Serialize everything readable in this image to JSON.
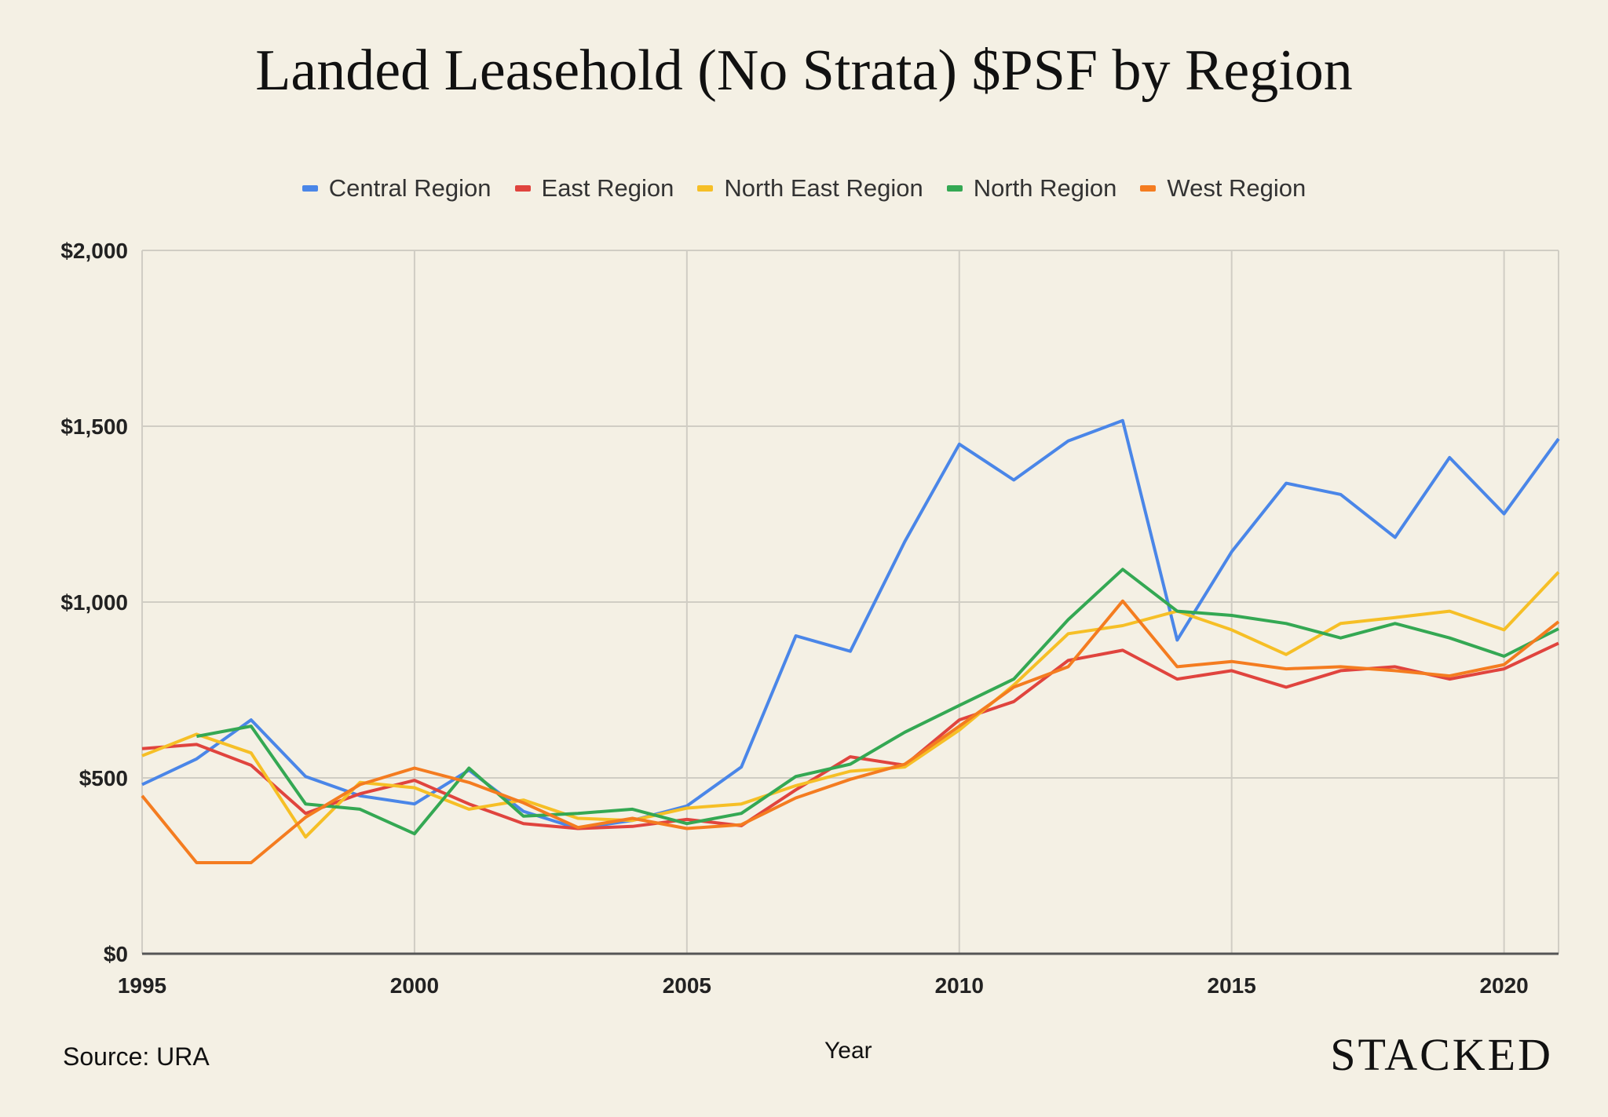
{
  "chart_data": {
    "type": "line",
    "title": "Landed Leasehold (No Strata) $PSF by Region",
    "xlabel": "Year",
    "ylabel": "",
    "ylim": [
      0,
      2000
    ],
    "xlim": [
      1995,
      2021
    ],
    "yticks": [
      "$0",
      "$500",
      "$1,000",
      "$1,500",
      "$2,000"
    ],
    "ytick_values": [
      0,
      500,
      1000,
      1500,
      2000
    ],
    "xticks": [
      "1995",
      "2000",
      "2005",
      "2010",
      "2015",
      "2020"
    ],
    "xtick_values": [
      1995,
      2000,
      2005,
      2010,
      2015,
      2020
    ],
    "grid": true,
    "legend_position": "top-center",
    "x": [
      1995,
      1996,
      1997,
      1998,
      1999,
      2000,
      2001,
      2002,
      2003,
      2004,
      2005,
      2006,
      2007,
      2008,
      2009,
      2010,
      2011,
      2012,
      2013,
      2014,
      2015,
      2016,
      2017,
      2018,
      2019,
      2020,
      2021
    ],
    "series": [
      {
        "name": "Central Region",
        "color": "#4a86e8",
        "values": [
          481,
          554,
          665,
          504,
          449,
          426,
          522,
          405,
          356,
          379,
          420,
          531,
          904,
          860,
          1172,
          1449,
          1347,
          1458,
          1516,
          892,
          1143,
          1338,
          1306,
          1184,
          1411,
          1251,
          1464
        ]
      },
      {
        "name": "East Region",
        "color": "#e0443e",
        "values": [
          583,
          595,
          536,
          399,
          455,
          493,
          426,
          370,
          356,
          362,
          382,
          364,
          466,
          560,
          536,
          665,
          717,
          834,
          863,
          781,
          805,
          758,
          805,
          816,
          781,
          810,
          883
        ]
      },
      {
        "name": "North East Region",
        "color": "#f6bf26",
        "values": [
          563,
          624,
          571,
          332,
          487,
          472,
          411,
          437,
          385,
          379,
          414,
          426,
          478,
          519,
          531,
          636,
          764,
          910,
          933,
          974,
          921,
          851,
          939,
          956,
          974,
          921,
          1085
        ]
      },
      {
        "name": "North Region",
        "color": "#34a853",
        "values": [
          null,
          618,
          647,
          426,
          411,
          341,
          528,
          391,
          399,
          411,
          370,
          399,
          504,
          539,
          630,
          706,
          781,
          950,
          1093,
          974,
          962,
          939,
          898,
          939,
          898,
          846,
          924
        ]
      },
      {
        "name": "West Region",
        "color": "#f47c20",
        "values": [
          449,
          259,
          259,
          388,
          481,
          528,
          487,
          429,
          359,
          385,
          356,
          367,
          443,
          496,
          539,
          647,
          758,
          816,
          1003,
          816,
          831,
          810,
          816,
          805,
          790,
          822,
          944
        ]
      }
    ]
  },
  "footer": {
    "source": "Source: URA",
    "brand": "STACKED"
  }
}
